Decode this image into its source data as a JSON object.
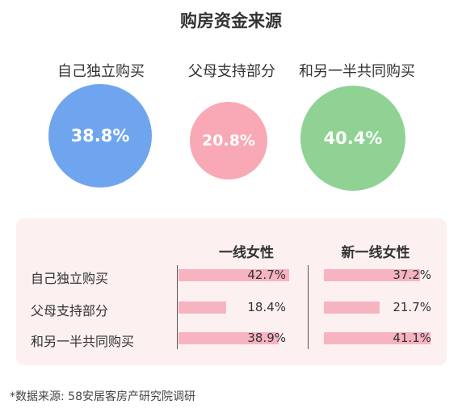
{
  "title": "购房资金来源",
  "colors": {
    "blue": "#6fa5ee",
    "pink": "#f8a9b5",
    "green": "#8fd293",
    "bar": "#f6b4c0",
    "panel": "#fdf0f0"
  },
  "bubbles": [
    {
      "label": "自己独立购买",
      "value": "38.8%",
      "pct": 38.8,
      "color": "#6fa5ee"
    },
    {
      "label": "父母支持部分",
      "value": "20.8%",
      "pct": 20.8,
      "color": "#f8a9b5"
    },
    {
      "label": "和另一半共同购买",
      "value": "40.4%",
      "pct": 40.4,
      "color": "#8fd293"
    }
  ],
  "table": {
    "columns": [
      "一线女性",
      "新一线女性"
    ],
    "rows": [
      {
        "label": "自己独立购买",
        "values": [
          "42.7%",
          "37.2%"
        ]
      },
      {
        "label": "父母支持部分",
        "values": [
          "18.4%",
          "21.7%"
        ]
      },
      {
        "label": "和另一半共同购买",
        "values": [
          "38.9%",
          "41.1%"
        ]
      }
    ]
  },
  "footnote": "*数据来源: 58安居客房产研究院调研",
  "chart_data": [
    {
      "type": "bubble",
      "title": "购房资金来源",
      "categories": [
        "自己独立购买",
        "父母支持部分",
        "和另一半共同购买"
      ],
      "values": [
        38.8,
        20.8,
        40.4
      ]
    },
    {
      "type": "bar",
      "categories": [
        "自己独立购买",
        "父母支持部分",
        "和另一半共同购买"
      ],
      "series": [
        {
          "name": "一线女性",
          "values": [
            42.7,
            18.4,
            38.9
          ]
        },
        {
          "name": "新一线女性",
          "values": [
            37.2,
            21.7,
            41.1
          ]
        }
      ]
    }
  ]
}
